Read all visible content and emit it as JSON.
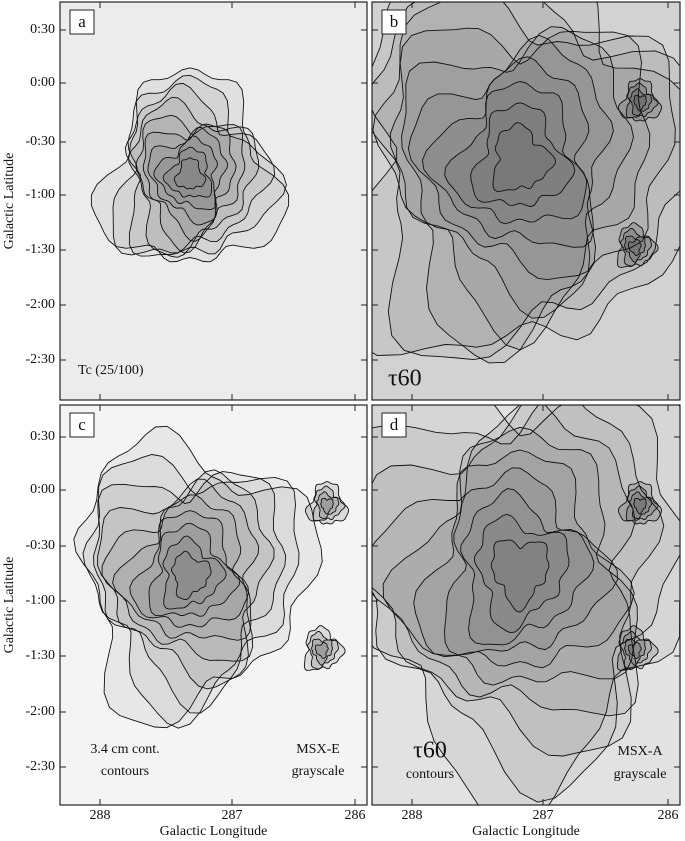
{
  "y_axis": {
    "label": "Galactic Latitude",
    "ticks": [
      "0:30",
      "0:00",
      "-0:30",
      "-1:00",
      "-1:30",
      "-2:00",
      "-2:30"
    ]
  },
  "x_axis": {
    "label": "Galactic Longitude",
    "ticks": [
      "288",
      "287",
      "286"
    ]
  },
  "panels": [
    {
      "label": "a",
      "annotations": [
        "Tc (25/100)"
      ]
    },
    {
      "label": "b",
      "annotations": [
        "τ60"
      ]
    },
    {
      "label": "c",
      "annotations": [
        "3.4 cm cont.",
        "contours",
        "MSX-E",
        "grayscale"
      ]
    },
    {
      "label": "d",
      "annotations": [
        "τ60",
        "contours",
        "MSX-A",
        "grayscale"
      ]
    }
  ]
}
